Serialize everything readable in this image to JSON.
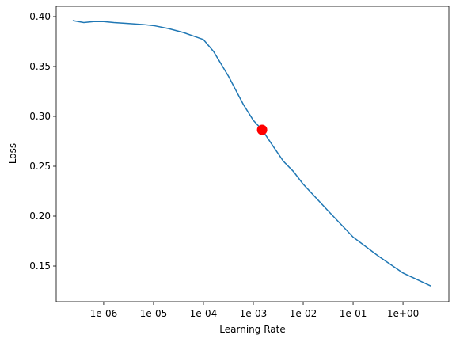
{
  "chart_data": {
    "type": "line",
    "xlabel": "Learning Rate",
    "ylabel": "Loss",
    "log_x": true,
    "x": [
      2.4e-07,
      4e-07,
      6.3e-07,
      1e-06,
      1.6e-06,
      3.2e-06,
      6.3e-06,
      1e-05,
      2e-05,
      4e-05,
      0.0001,
      0.00016,
      0.00032,
      0.00063,
      0.001,
      0.0015,
      0.0025,
      0.004,
      0.0063,
      0.01,
      0.032,
      0.1,
      0.32,
      1,
      3.6
    ],
    "values": [
      0.396,
      0.394,
      0.395,
      0.395,
      0.394,
      0.393,
      0.392,
      0.391,
      0.388,
      0.384,
      0.377,
      0.365,
      0.34,
      0.312,
      0.296,
      0.2865,
      0.27,
      0.255,
      0.245,
      0.232,
      0.205,
      0.179,
      0.16,
      0.143,
      0.13
    ],
    "color": "#1f77b4",
    "marker": {
      "x": 0.0015,
      "y": 0.2865,
      "color": "#ff0000"
    },
    "xlim": [
      1.12e-07,
      8.3
    ],
    "ylim": [
      0.1143,
      0.4103
    ],
    "xticks": [
      {
        "value": 1e-06,
        "label": "1e-06"
      },
      {
        "value": 1e-05,
        "label": "1e-05"
      },
      {
        "value": 0.0001,
        "label": "1e-04"
      },
      {
        "value": 0.001,
        "label": "1e-03"
      },
      {
        "value": 0.01,
        "label": "1e-02"
      },
      {
        "value": 0.1,
        "label": "1e-01"
      },
      {
        "value": 1,
        "label": "1e+00"
      }
    ],
    "yticks": [
      0.15,
      {
        "value": 0.2,
        "label": "0.20"
      },
      0.25,
      {
        "value": 0.3,
        "label": "0.30"
      },
      0.35,
      {
        "value": 0.4,
        "label": "0.40"
      }
    ]
  }
}
